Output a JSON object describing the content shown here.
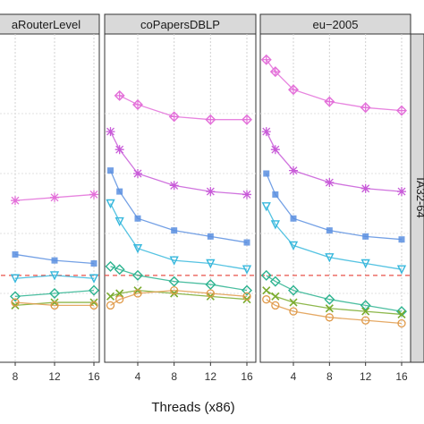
{
  "chart_data": {
    "type": "line",
    "xlabel": "Threads (x86)",
    "ylabel": "",
    "x_ticks": [
      4,
      8,
      12,
      16
    ],
    "x_ticks_visible_first_panel": [
      8,
      12,
      16
    ],
    "xlim": [
      0,
      17
    ],
    "row_strip": "IA32-64",
    "reference_line": {
      "style": "dashed",
      "color": "#e8524a"
    },
    "panels": [
      {
        "name": "...aRouterLevel",
        "strip_label": "aRouterLevel",
        "series": [
          {
            "color": "#e36fd9",
            "marker": "asterisk",
            "x": [
              1,
              2,
              4,
              8,
              12,
              16
            ],
            "y": [
              0.49,
              0.49,
              0.5,
              0.49,
              0.48,
              0.47
            ]
          },
          {
            "color": "#5b8fe0",
            "marker": "square",
            "x": [
              1,
              2,
              4,
              8,
              12,
              16
            ],
            "y": [
              0.64,
              0.65,
              0.66,
              0.67,
              0.69,
              0.7
            ]
          },
          {
            "color": "#37b8dd",
            "marker": "triangle-down",
            "x": [
              1,
              2,
              4,
              8,
              12,
              16
            ],
            "y": [
              0.73,
              0.74,
              0.75,
              0.75,
              0.74,
              0.75
            ]
          },
          {
            "color": "#2cb38f",
            "marker": "diamond",
            "x": [
              1,
              2,
              4,
              8,
              12,
              16
            ],
            "y": [
              0.8,
              0.8,
              0.81,
              0.81,
              0.8,
              0.79
            ]
          },
          {
            "color": "#7aab2e",
            "marker": "cross",
            "x": [
              1,
              2,
              4,
              8,
              12,
              16
            ],
            "y": [
              0.83,
              0.83,
              0.84,
              0.84,
              0.83,
              0.83
            ]
          },
          {
            "color": "#e09a4a",
            "marker": "circle",
            "x": [
              1,
              2,
              4,
              8,
              12,
              16
            ],
            "y": [
              0.83,
              0.84,
              0.84,
              0.83,
              0.84,
              0.84
            ]
          }
        ]
      },
      {
        "name": "coPapersDBLP",
        "strip_label": "coPapersDBLP",
        "series": [
          {
            "color": "#e36fd9",
            "marker": "diamond-plus",
            "x": [
              2,
              4,
              8,
              12,
              16
            ],
            "y": [
              0.14,
              0.17,
              0.21,
              0.22,
              0.22
            ]
          },
          {
            "color": "#c85ad8",
            "marker": "asterisk",
            "x": [
              1,
              2,
              4,
              8,
              12,
              16
            ],
            "y": [
              0.26,
              0.32,
              0.4,
              0.44,
              0.46,
              0.47
            ]
          },
          {
            "color": "#5b8fe0",
            "marker": "square",
            "x": [
              1,
              2,
              4,
              8,
              12,
              16
            ],
            "y": [
              0.39,
              0.46,
              0.55,
              0.59,
              0.61,
              0.63
            ]
          },
          {
            "color": "#37b8dd",
            "marker": "triangle-down",
            "x": [
              1,
              2,
              4,
              8,
              12,
              16
            ],
            "y": [
              0.5,
              0.56,
              0.65,
              0.69,
              0.7,
              0.72
            ]
          },
          {
            "color": "#2cb38f",
            "marker": "diamond",
            "x": [
              1,
              2,
              4,
              8,
              12,
              16
            ],
            "y": [
              0.71,
              0.72,
              0.74,
              0.76,
              0.77,
              0.79
            ]
          },
          {
            "color": "#7aab2e",
            "marker": "cross",
            "x": [
              1,
              2,
              4,
              8,
              12,
              16
            ],
            "y": [
              0.81,
              0.8,
              0.79,
              0.8,
              0.81,
              0.82
            ]
          },
          {
            "color": "#e09a4a",
            "marker": "circle",
            "x": [
              1,
              2,
              4,
              8,
              12,
              16
            ],
            "y": [
              0.84,
              0.82,
              0.8,
              0.79,
              0.8,
              0.81
            ]
          }
        ]
      },
      {
        "name": "eu-2005",
        "strip_label": "eu−2005",
        "series": [
          {
            "color": "#e36fd9",
            "marker": "diamond-plus",
            "x": [
              1,
              2,
              4,
              8,
              12,
              16
            ],
            "y": [
              0.02,
              0.06,
              0.12,
              0.16,
              0.18,
              0.19
            ]
          },
          {
            "color": "#c85ad8",
            "marker": "asterisk",
            "x": [
              1,
              2,
              4,
              8,
              12,
              16
            ],
            "y": [
              0.26,
              0.32,
              0.39,
              0.43,
              0.45,
              0.46
            ]
          },
          {
            "color": "#5b8fe0",
            "marker": "square",
            "x": [
              1,
              2,
              4,
              8,
              12,
              16
            ],
            "y": [
              0.4,
              0.47,
              0.55,
              0.59,
              0.61,
              0.62
            ]
          },
          {
            "color": "#37b8dd",
            "marker": "triangle-down",
            "x": [
              1,
              2,
              4,
              8,
              12,
              16
            ],
            "y": [
              0.51,
              0.57,
              0.64,
              0.68,
              0.7,
              0.72
            ]
          },
          {
            "color": "#2cb38f",
            "marker": "diamond",
            "x": [
              1,
              2,
              4,
              8,
              12,
              16
            ],
            "y": [
              0.74,
              0.76,
              0.79,
              0.82,
              0.84,
              0.86
            ]
          },
          {
            "color": "#7aab2e",
            "marker": "cross",
            "x": [
              1,
              2,
              4,
              8,
              12,
              16
            ],
            "y": [
              0.79,
              0.81,
              0.83,
              0.85,
              0.86,
              0.87
            ]
          },
          {
            "color": "#e09a4a",
            "marker": "circle",
            "x": [
              1,
              2,
              4,
              8,
              12,
              16
            ],
            "y": [
              0.82,
              0.84,
              0.86,
              0.88,
              0.89,
              0.9
            ]
          }
        ]
      }
    ],
    "reference_y": 0.74,
    "ylim": [
      0,
      1
    ],
    "y_inverted": true,
    "grid": true,
    "legend": "none"
  }
}
